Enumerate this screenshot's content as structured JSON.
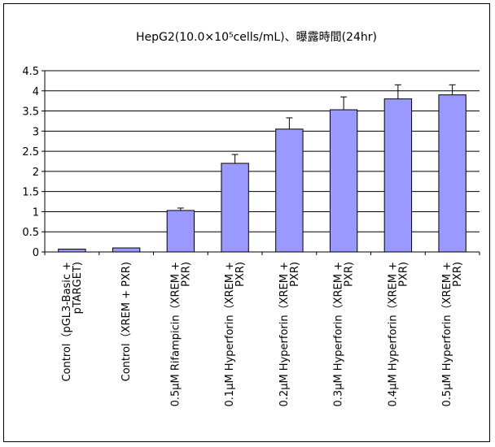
{
  "chart_data": {
    "type": "bar",
    "title": "HepG2(10.0×10⁵cells/mL)、曝露時間(24hr)",
    "categories": [
      [
        "Control（pGL3-Basic +",
        "pTARGET)"
      ],
      [
        "Control（XREM + PXR)"
      ],
      [
        "0.5μM Rifampicin（XREM +",
        "PXR)"
      ],
      [
        "0.1μM  Hyperforin（XREM +",
        "PXR)"
      ],
      [
        "0.2μM  Hyperforin（XREM +",
        "PXR)"
      ],
      [
        "0.3μM  Hyperforin（XREM +",
        "PXR)"
      ],
      [
        "0.4μM  Hyperforin（XREM +",
        "PXR)"
      ],
      [
        "0.5μM  Hyperforin（XREM +",
        "PXR)"
      ]
    ],
    "values": [
      0.07,
      0.1,
      1.03,
      2.2,
      3.05,
      3.53,
      3.8,
      3.9
    ],
    "errors": [
      0.0,
      0.0,
      0.06,
      0.22,
      0.28,
      0.32,
      0.35,
      0.25
    ],
    "ylim": [
      0,
      4.5
    ],
    "yticks": [
      "0",
      "0.5",
      "1",
      "1.5",
      "2",
      "2.5",
      "3",
      "3.5",
      "4",
      "4.5"
    ],
    "ytick_values": [
      0,
      0.5,
      1,
      1.5,
      2,
      2.5,
      3,
      3.5,
      4,
      4.5
    ],
    "grid": true,
    "colors": {
      "bar_fill": "#9999ff",
      "bar_stroke": "#000000",
      "grid": "#000000"
    }
  }
}
